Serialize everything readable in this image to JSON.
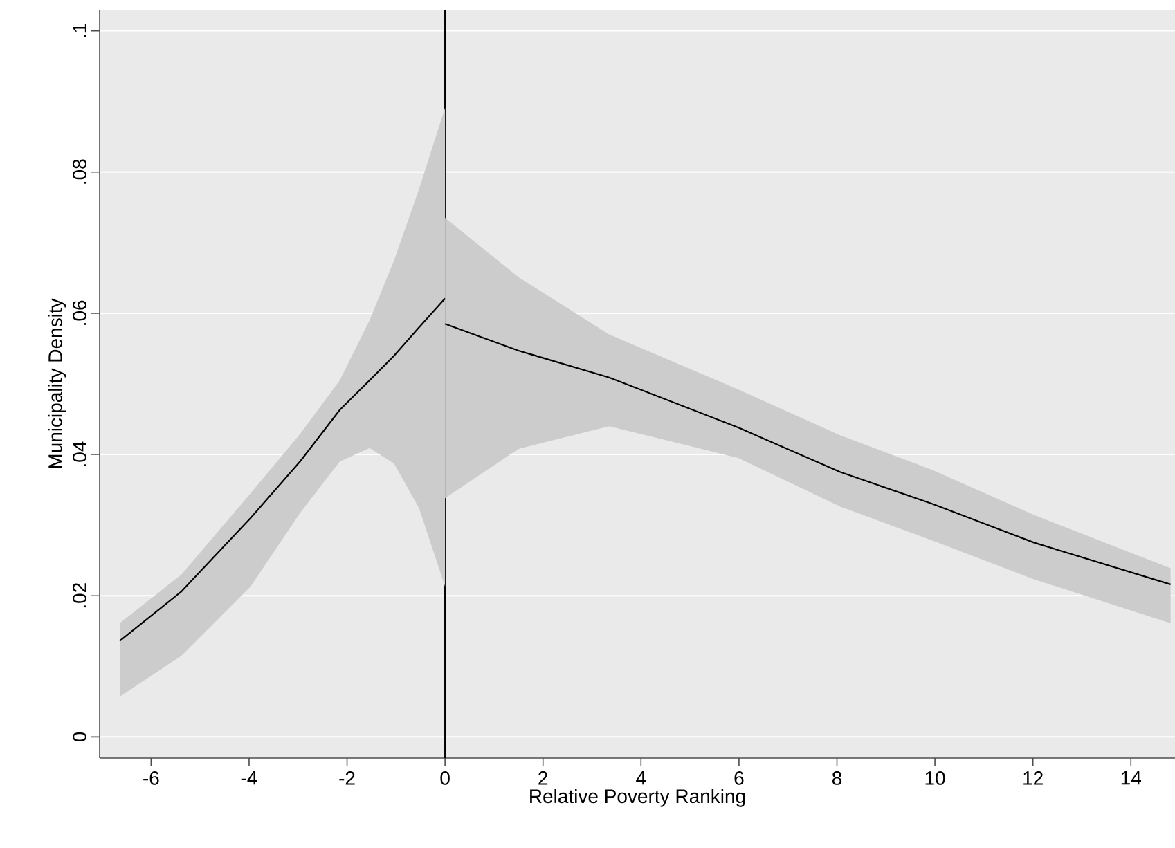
{
  "chart_data": {
    "type": "line",
    "xlabel": "Relative Poverty Ranking",
    "ylabel": "Municipality Density",
    "xlim": [
      -7.05,
      14.9
    ],
    "ylim": [
      -0.003,
      0.103
    ],
    "xticks": [
      -6,
      -4,
      -2,
      0,
      2,
      4,
      6,
      8,
      10,
      12,
      14
    ],
    "yticks": [
      0,
      {
        "value": 0.02,
        "label": ".02"
      },
      {
        "value": 0.04,
        "label": ".04"
      },
      {
        "value": 0.06,
        "label": ".06"
      },
      {
        "value": 0.08,
        "label": ".08"
      },
      {
        "value": 0.1,
        "label": ".1"
      }
    ],
    "grid": "y",
    "ref_lines": [
      {
        "axis": "x",
        "value": 0,
        "color": "#000000"
      }
    ],
    "series": [
      {
        "color": "#000000",
        "x": [
          -6.64,
          -5.38,
          -3.97,
          -2.96,
          -2.15,
          -1.54,
          -1.04,
          -0.53,
          0
        ],
        "values": [
          0.0136,
          0.0206,
          0.031,
          0.039,
          0.0463,
          0.0505,
          0.054,
          0.058,
          0.0621
        ],
        "lower": [
          0.0057,
          0.0115,
          0.0213,
          0.0317,
          0.039,
          0.0409,
          0.0387,
          0.0324,
          0.0213
        ],
        "upper": [
          0.0161,
          0.023,
          0.0345,
          0.0429,
          0.0505,
          0.059,
          0.0675,
          0.0776,
          0.0891
        ]
      },
      {
        "color": "#000000",
        "x": [
          0,
          1.5,
          3.35,
          5.99,
          8.07,
          9.95,
          12.03,
          14.81
        ],
        "values": [
          0.0585,
          0.0547,
          0.0509,
          0.0438,
          0.0375,
          0.033,
          0.0275,
          0.0216
        ],
        "lower": [
          0.0338,
          0.0408,
          0.044,
          0.0395,
          0.0326,
          0.0278,
          0.0223,
          0.0161
        ],
        "upper": [
          0.0735,
          0.0651,
          0.057,
          0.0492,
          0.0427,
          0.0378,
          0.0314,
          0.0239
        ]
      }
    ]
  }
}
